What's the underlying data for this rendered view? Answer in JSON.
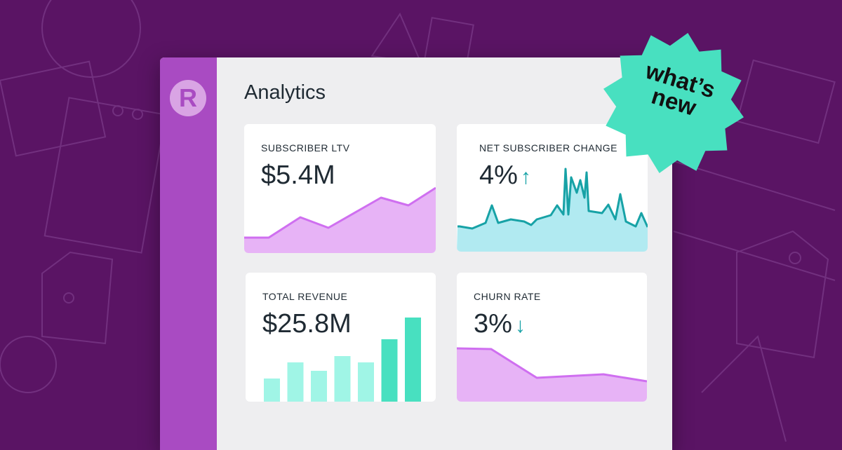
{
  "header": {
    "title": "Analytics",
    "logo_letter": "R"
  },
  "badge": {
    "line1": "what’s",
    "line2": "new",
    "color": "#48e0c0"
  },
  "colors": {
    "purple_line": "#cf6ff0",
    "purple_fill": "#e3a6f4",
    "teal_line": "#17a2a6",
    "teal_fill": "#a3e6ef",
    "bar_light": "#a0f5e6",
    "bar_dark": "#48e0c0"
  },
  "cards": [
    {
      "label": "SUBSCRIBER LTV",
      "value": "$5.4M",
      "arrow": ""
    },
    {
      "label": "NET SUBSCRIBER CHANGE",
      "value": "4%",
      "arrow": "↑"
    },
    {
      "label": "TOTAL REVENUE",
      "value": "$25.8M",
      "arrow": ""
    },
    {
      "label": "CHURN RATE",
      "value": "3%",
      "arrow": "↓"
    }
  ],
  "chart_data": [
    {
      "type": "area",
      "title": "SUBSCRIBER LTV",
      "x": [
        0,
        35,
        80,
        120,
        195,
        234,
        273
      ],
      "values": [
        22,
        22,
        51,
        36,
        79,
        68,
        93
      ],
      "xlim": [
        0,
        273
      ],
      "ylim": [
        0,
        184
      ]
    },
    {
      "type": "area",
      "title": "NET SUBSCRIBER CHANGE",
      "x": [
        1,
        4,
        22,
        41,
        50,
        59,
        77,
        96,
        106,
        114,
        134,
        143,
        152,
        155,
        159,
        163,
        171,
        176,
        182,
        185,
        188,
        207,
        216,
        226,
        233,
        241,
        255,
        263,
        272
      ],
      "values": [
        36,
        36,
        33,
        41,
        66,
        41,
        46,
        43,
        38,
        46,
        52,
        66,
        53,
        118,
        53,
        106,
        84,
        102,
        77,
        113,
        58,
        55,
        67,
        46,
        82,
        43,
        36,
        55,
        35
      ],
      "xlim": [
        0,
        272
      ],
      "ylim": [
        0,
        182
      ]
    },
    {
      "type": "bar",
      "title": "TOTAL REVENUE",
      "categories": [
        "1",
        "2",
        "3",
        "4",
        "5",
        "6",
        "7"
      ],
      "values": [
        33,
        56,
        44,
        65,
        56,
        89,
        120
      ],
      "ylim": [
        0,
        184
      ]
    },
    {
      "type": "area",
      "title": "CHURN RATE",
      "x": [
        0,
        49,
        114,
        209,
        271
      ],
      "values": [
        76,
        75,
        34,
        39,
        29
      ],
      "xlim": [
        0,
        271
      ],
      "ylim": [
        0,
        184
      ]
    }
  ]
}
